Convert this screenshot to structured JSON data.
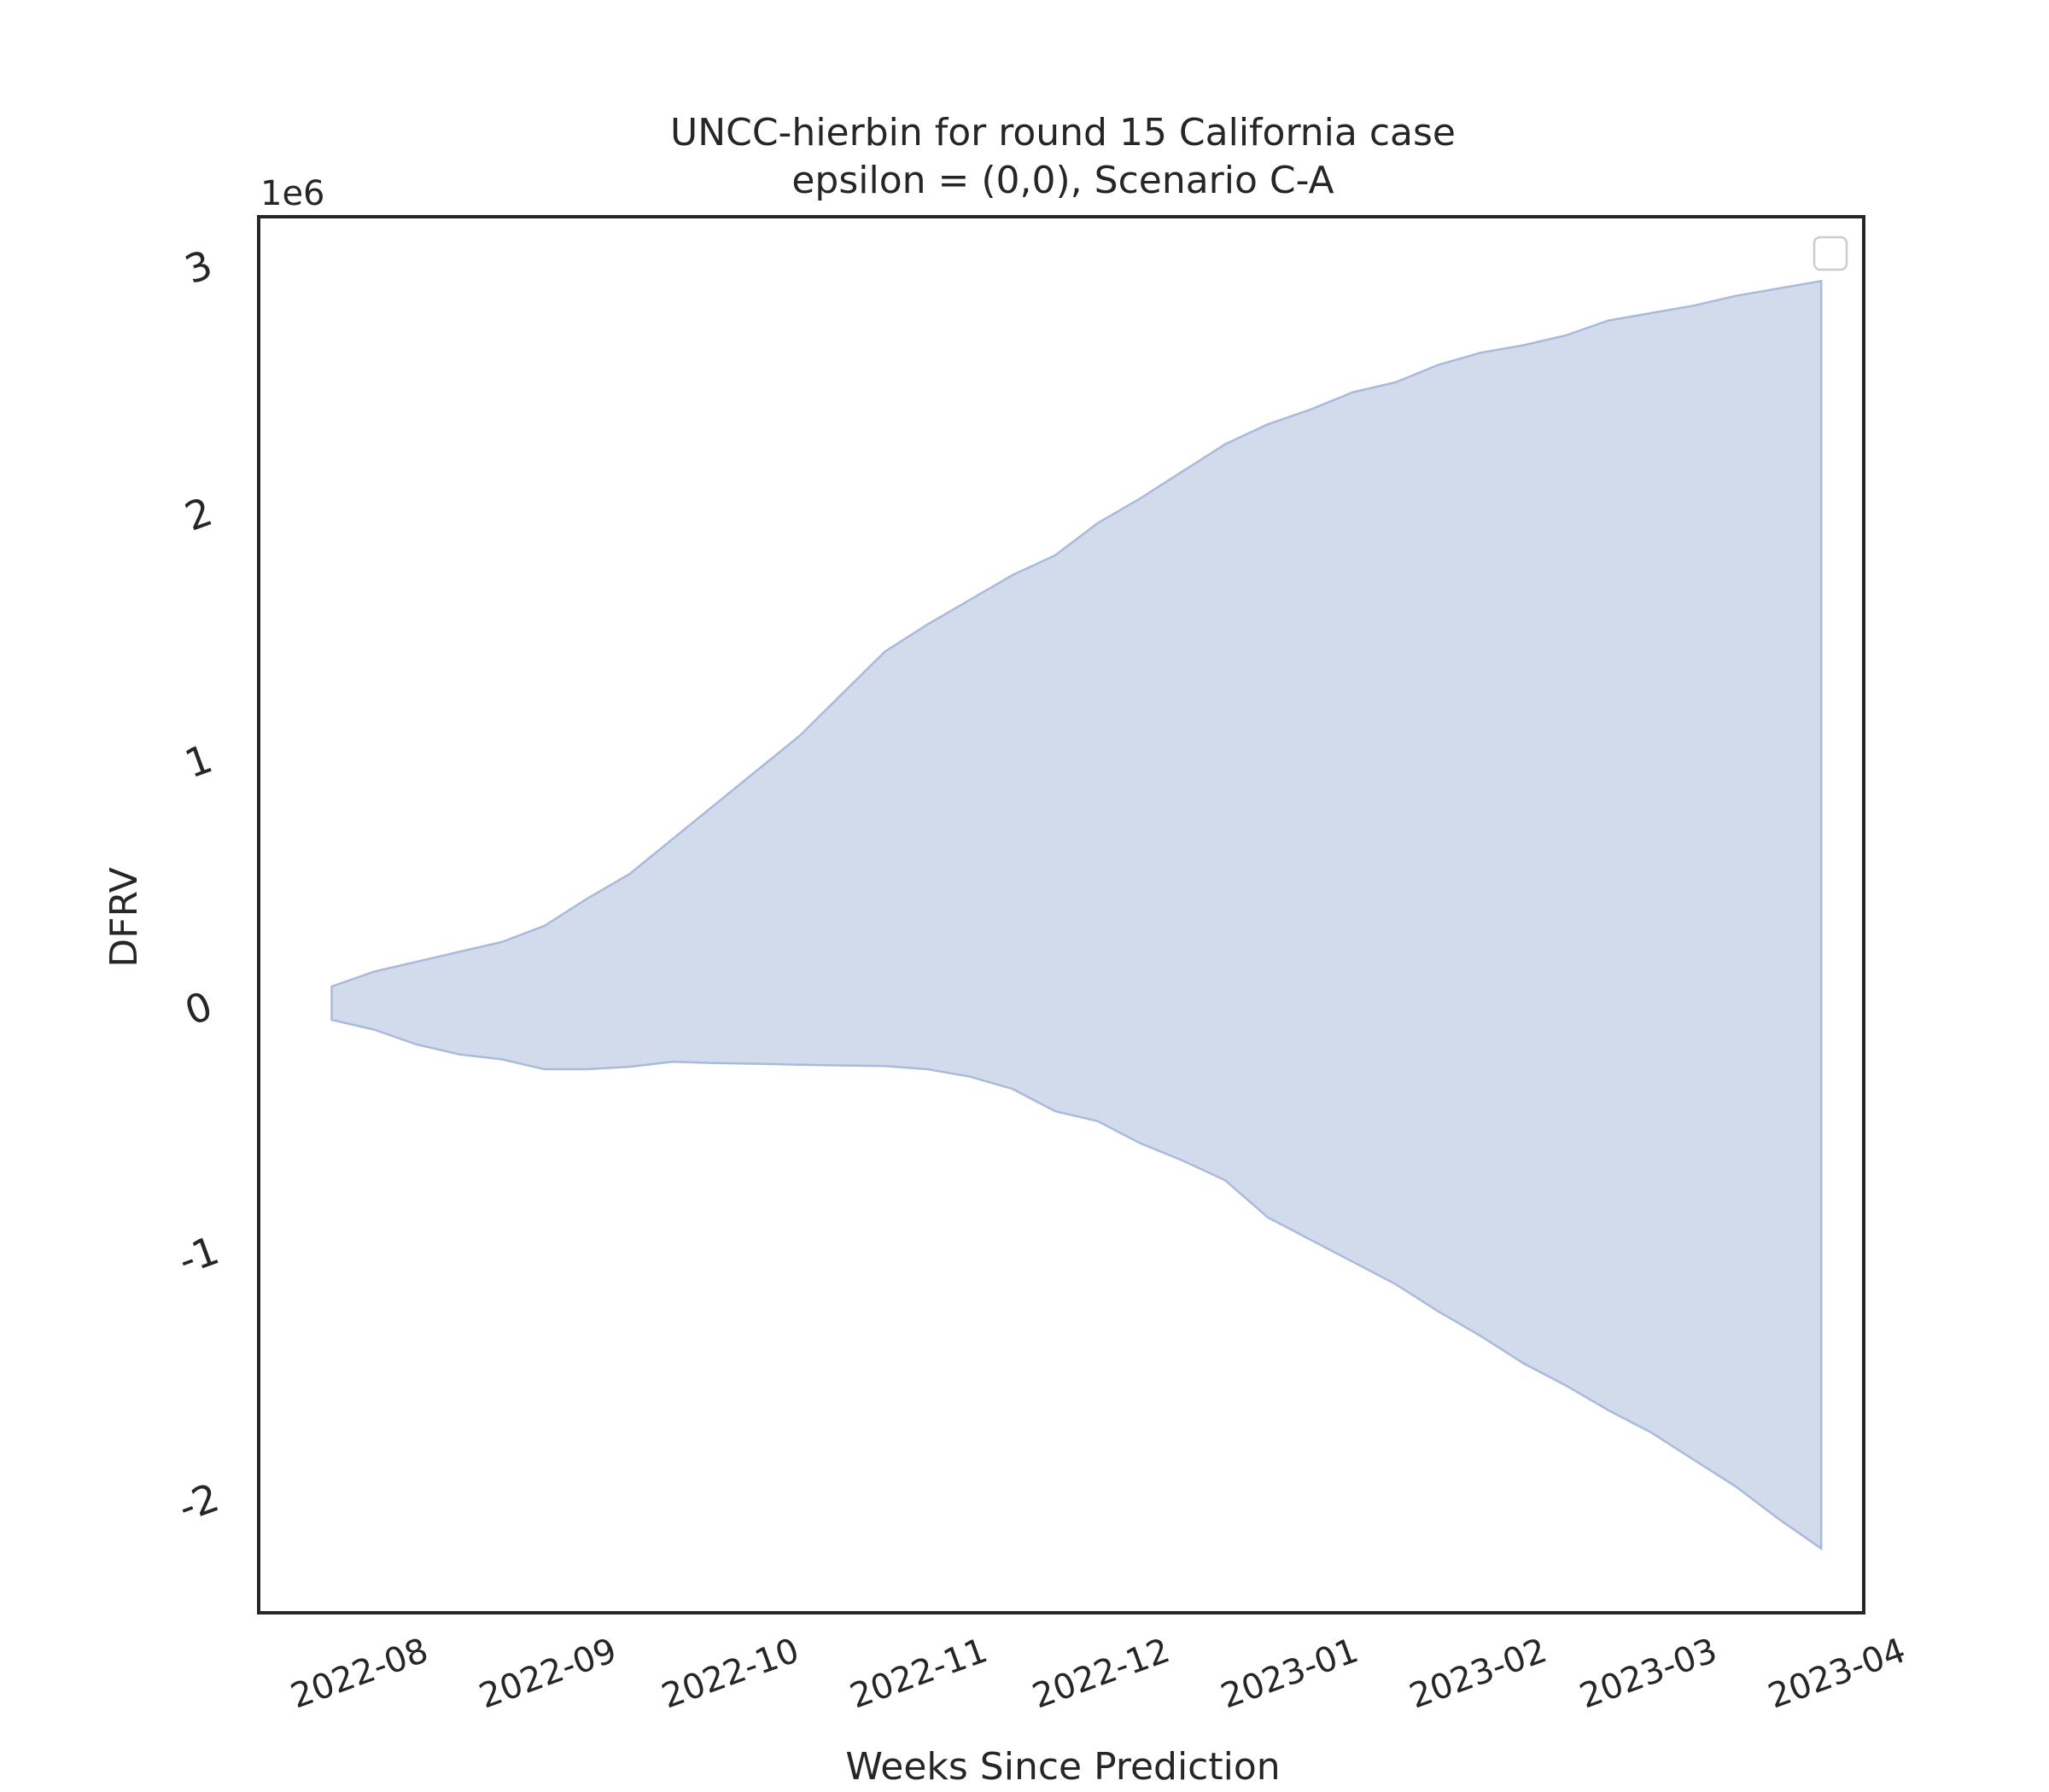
{
  "chart_data": {
    "type": "area",
    "title_line1": "UNCC-hierbin for round 15 California case",
    "title_line2": "epsilon = (0,0), Scenario C-A",
    "xlabel": "Weeks Since Prediction",
    "ylabel": "DFRV",
    "y_multiplier_label": "1e6",
    "y_ticks": [
      -2000000,
      -1000000,
      0,
      1000000,
      2000000,
      3000000
    ],
    "y_tick_labels": [
      "-2",
      "-1",
      "0",
      "1",
      "2",
      "3"
    ],
    "ylim": [
      -2450000,
      3200000
    ],
    "x_ticks": [
      "2022-08-01",
      "2022-09-01",
      "2022-10-01",
      "2022-11-01",
      "2022-12-01",
      "2023-01-01",
      "2023-02-01",
      "2023-03-01",
      "2023-04-01"
    ],
    "x_tick_labels": [
      "2022-08",
      "2022-09",
      "2022-10",
      "2022-11",
      "2022-12",
      "2023-01",
      "2023-02",
      "2023-03",
      "2023-04"
    ],
    "xlim": [
      "2022-07-15",
      "2023-04-05"
    ],
    "grid": false,
    "legend": "top-right (empty)",
    "fill_color": "#c8d3e8",
    "edge_color": "#a9badc",
    "series": [
      {
        "x": [
          "2022-07-27",
          "2022-08-03",
          "2022-08-10",
          "2022-08-17",
          "2022-08-24",
          "2022-08-31",
          "2022-09-07",
          "2022-09-14",
          "2022-09-21",
          "2022-09-28",
          "2022-10-05",
          "2022-10-12",
          "2022-10-19",
          "2022-10-26",
          "2022-11-02",
          "2022-11-09",
          "2022-11-16",
          "2022-11-23",
          "2022-11-30",
          "2022-12-07",
          "2022-12-14",
          "2022-12-21",
          "2022-12-28",
          "2023-01-04",
          "2023-01-11",
          "2023-01-18",
          "2023-01-25",
          "2023-02-01",
          "2023-02-08",
          "2023-02-15",
          "2023-02-22",
          "2023-03-01",
          "2023-03-08",
          "2023-03-15",
          "2023-03-22",
          "2023-03-29"
        ],
        "upper": [
          85000,
          145000,
          185000,
          225000,
          265000,
          330000,
          440000,
          540000,
          680000,
          820000,
          960000,
          1100000,
          1270000,
          1440000,
          1550000,
          1650000,
          1750000,
          1830000,
          1960000,
          2060000,
          2170000,
          2280000,
          2360000,
          2420000,
          2490000,
          2530000,
          2600000,
          2650000,
          2680000,
          2720000,
          2780000,
          2810000,
          2840000,
          2880000,
          2910000,
          2940000
        ],
        "lower": [
          -50000,
          -90000,
          -150000,
          -190000,
          -210000,
          -250000,
          -250000,
          -240000,
          -220000,
          -225000,
          -228000,
          -232000,
          -235000,
          -237000,
          -250000,
          -280000,
          -330000,
          -420000,
          -460000,
          -550000,
          -620000,
          -700000,
          -850000,
          -940000,
          -1030000,
          -1120000,
          -1230000,
          -1330000,
          -1440000,
          -1530000,
          -1630000,
          -1720000,
          -1830000,
          -1940000,
          -2070000,
          -2190000
        ]
      }
    ]
  }
}
